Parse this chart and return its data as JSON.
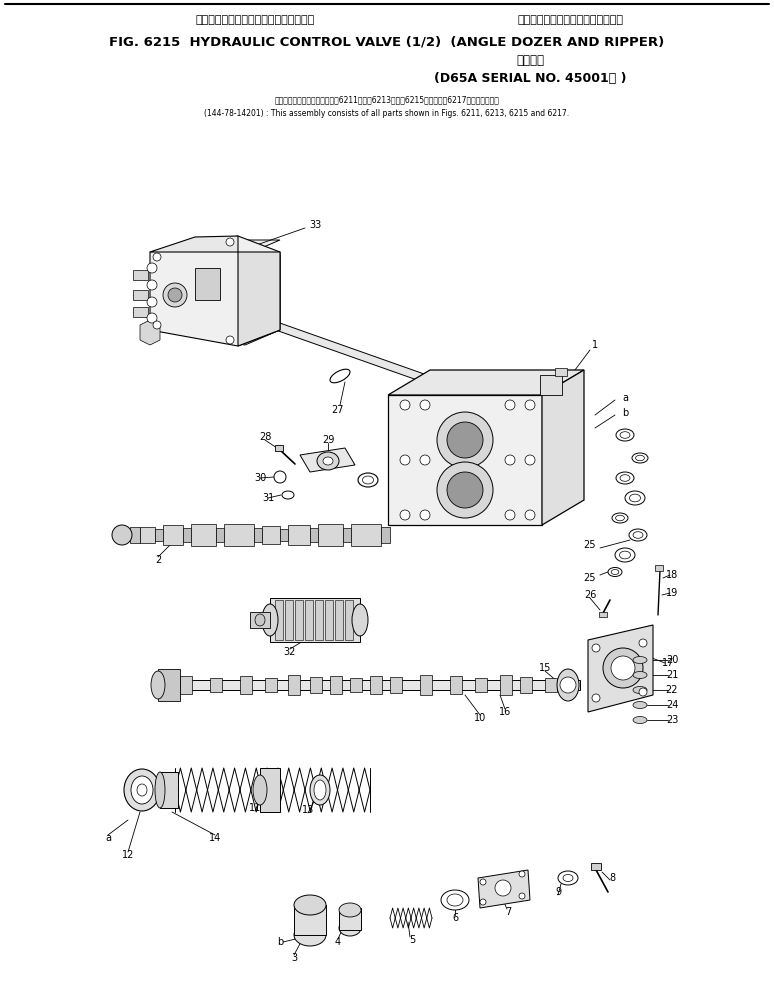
{
  "title_jp_line1": "ハイドロリック　コントロール　バルブ　　　アングル　ドーザ　および　リッパ",
  "title_en": "FIG. 6215  HYDRAULIC CONTROL VALVE (1/2)  (ANGLE DOZER AND RIPPER)",
  "title_jp2": "適用号機",
  "title_en2": "(D65A SERIAL NO. 45001− )",
  "note_jp": "このアセンブリの構成部品は第6211図、第6213図、第6215図および第6217図を含みます。",
  "note_en": "(144-78-14201) : This assembly consists of all parts shown in Figs. 6211, 6213, 6215 and 6217.",
  "bg_color": "#ffffff",
  "lc": "#000000"
}
